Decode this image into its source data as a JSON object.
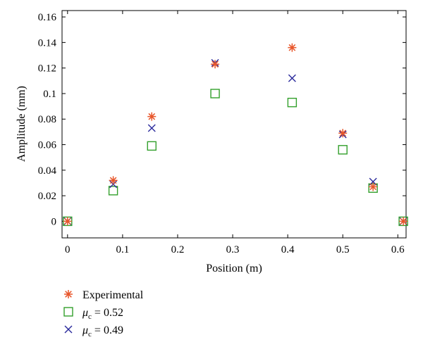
{
  "chart_data": {
    "type": "scatter",
    "title": "",
    "xlabel": "Position (m)",
    "ylabel": "Amplitude (mm)",
    "xlim": [
      -0.01,
      0.615
    ],
    "ylim": [
      -0.013,
      0.165
    ],
    "xticks": [
      0,
      0.1,
      0.2,
      0.3,
      0.4,
      0.5,
      0.6
    ],
    "xtick_labels": [
      "0",
      "0.1",
      "0.2",
      "0.3",
      "0.4",
      "0.5",
      "0.6"
    ],
    "yticks": [
      0,
      0.02,
      0.04,
      0.06,
      0.08,
      0.1,
      0.12,
      0.14,
      0.16
    ],
    "ytick_labels": [
      "0",
      "0.02",
      "0.04",
      "0.06",
      "0.08",
      "0.1",
      "0.12",
      "0.14",
      "0.16"
    ],
    "grid": false,
    "legend_position": "below-left",
    "series": [
      {
        "name": "Experimental",
        "legend_prefix": "",
        "legend_label": "Experimental",
        "legend_suffix": "",
        "marker": "asterisk",
        "color": "#e8562a",
        "x": [
          0,
          0.083,
          0.153,
          0.268,
          0.408,
          0.5,
          0.555,
          0.61
        ],
        "y": [
          0,
          0.032,
          0.082,
          0.123,
          0.136,
          0.069,
          0.027,
          0
        ]
      },
      {
        "name": "μc = 0.52",
        "legend_prefix": "μ",
        "legend_label": "c",
        "legend_suffix": " = 0.52",
        "marker": "square",
        "color": "#33a02c",
        "x": [
          0,
          0.083,
          0.153,
          0.268,
          0.408,
          0.5,
          0.555,
          0.61
        ],
        "y": [
          0,
          0.024,
          0.059,
          0.1,
          0.093,
          0.056,
          0.026,
          0
        ]
      },
      {
        "name": "μc = 0.49",
        "legend_prefix": "μ",
        "legend_label": "c",
        "legend_suffix": " = 0.49",
        "marker": "x",
        "color": "#2b2b9c",
        "x": [
          0,
          0.083,
          0.153,
          0.268,
          0.408,
          0.5,
          0.555,
          0.61
        ],
        "y": [
          0,
          0.029,
          0.073,
          0.124,
          0.112,
          0.068,
          0.031,
          0
        ]
      }
    ]
  }
}
